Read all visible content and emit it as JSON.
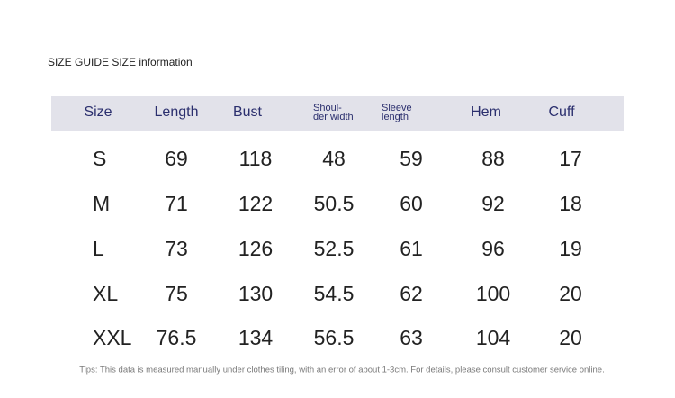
{
  "header": {
    "title": "SIZE GUIDE SIZE information"
  },
  "table": {
    "columns": [
      "Size",
      "Length",
      "Bust",
      [
        "Shoul-",
        "der width"
      ],
      [
        "Sleeve",
        "length"
      ],
      "Hem",
      "Cuff"
    ],
    "rows": [
      [
        "S",
        69,
        118,
        48,
        59,
        88,
        17
      ],
      [
        "M",
        71,
        122,
        50.5,
        60,
        92,
        18
      ],
      [
        "L",
        73,
        126,
        52.5,
        61,
        96,
        19
      ],
      [
        "XL",
        75,
        130,
        54.5,
        62,
        100,
        20
      ],
      [
        "XXL",
        76.5,
        134,
        56.5,
        63,
        104,
        20
      ]
    ]
  },
  "footer": {
    "tip": "Tips: This data is measured manually under clothes tiling, with an error of about 1-3cm. For details, please consult customer service online."
  }
}
